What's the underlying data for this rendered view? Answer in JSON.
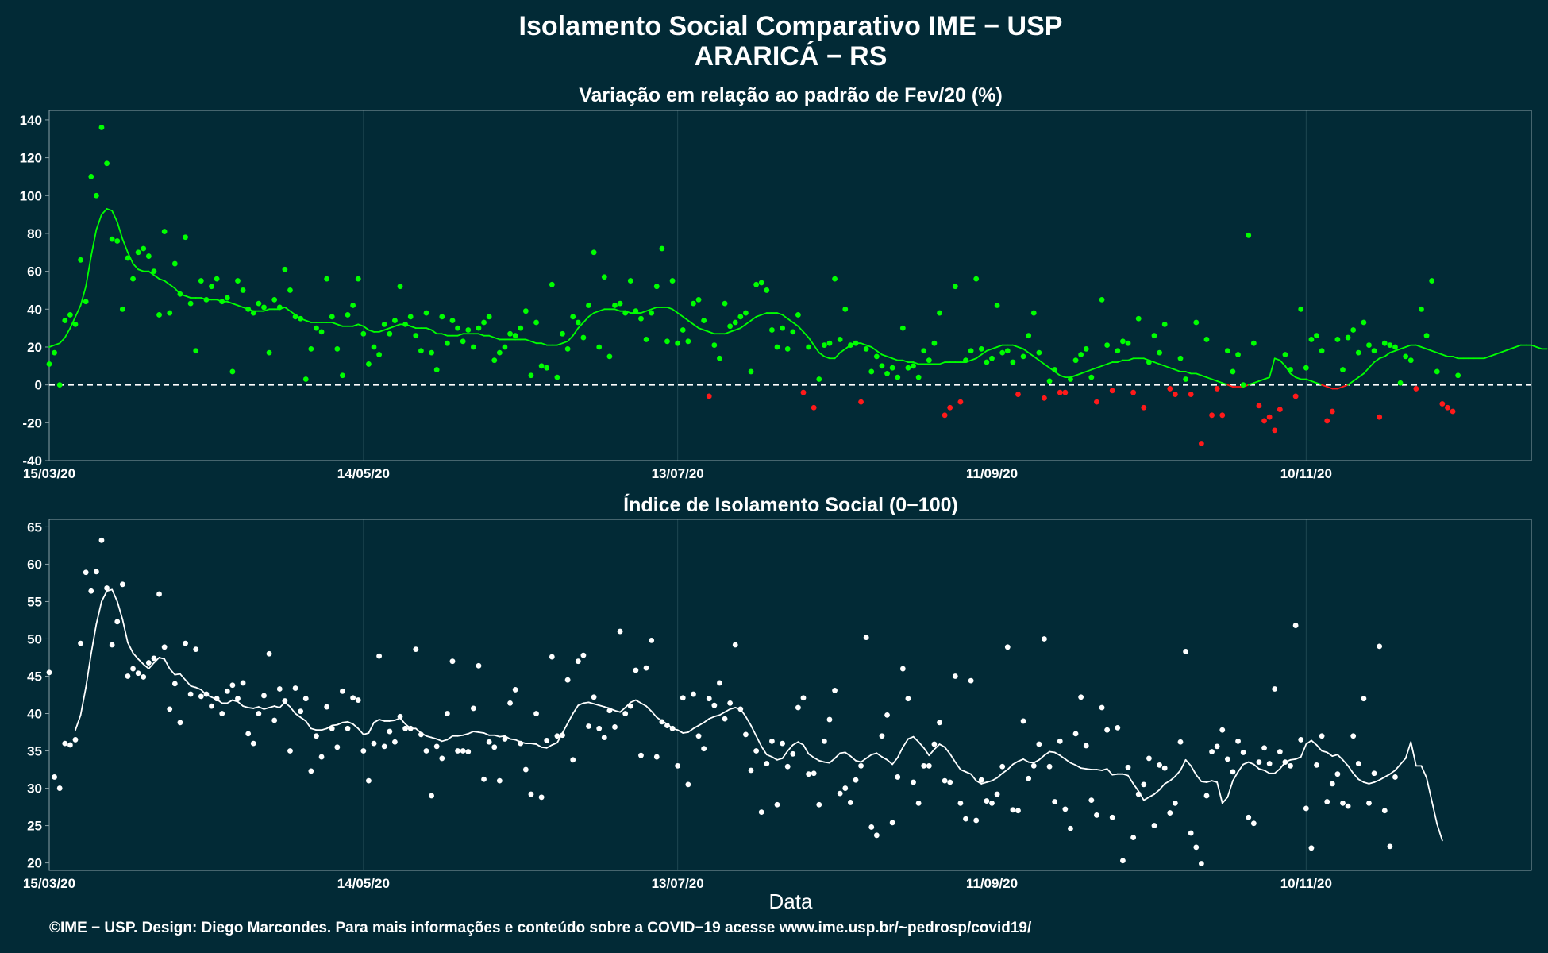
{
  "figure": {
    "title": "Isolamento Social Comparativo IME − USP",
    "subtitle": "ARARICÁ − RS",
    "xlabel": "Data",
    "footer": "©IME − USP. Design: Diego Marcondes. Para mais informações e conteúdo sobre a COVID−19 acesse www.ime.usp.br/~pedrosp/covid19/",
    "colors": {
      "background": "#022a36",
      "positive": "#00ff00",
      "negative": "#ff1a1a",
      "index": "#ffffff",
      "grid": "#1f4752",
      "frame": "#8aa0a6"
    }
  },
  "chart_data": [
    {
      "type": "scatter",
      "title": "Variação em relação ao padrão de Fev/20 (%)",
      "x_start": "15/03/20",
      "x_ticks": [
        "15/03/20",
        "14/05/20",
        "13/07/20",
        "11/09/20",
        "10/11/20"
      ],
      "x_range": [
        "15/03/20",
        "23/12/20"
      ],
      "ylim": [
        -40,
        145
      ],
      "yticks": [
        -40,
        -20,
        0,
        20,
        40,
        60,
        80,
        100,
        120,
        140
      ],
      "reference_line": 0,
      "series": [
        {
          "values": [
            11,
            17,
            0,
            34,
            37,
            32,
            66,
            44,
            110,
            100,
            136,
            117,
            77,
            76,
            40,
            67,
            56,
            70,
            72,
            68,
            60,
            37,
            81,
            38,
            64,
            48,
            78,
            43,
            18,
            55,
            45,
            52,
            56,
            44,
            46,
            7,
            55,
            50,
            40,
            38,
            43,
            41,
            17,
            45,
            41,
            61,
            50,
            36,
            35,
            3,
            19,
            30,
            28,
            56,
            36,
            19,
            5,
            37,
            42,
            56,
            27,
            11,
            20,
            16,
            32,
            27,
            34,
            52,
            32,
            36,
            26,
            18,
            38,
            17,
            8,
            36,
            22,
            34,
            30,
            23,
            29,
            20,
            30,
            33,
            36,
            13,
            17,
            20,
            27,
            26,
            30,
            39,
            5,
            33,
            10,
            9,
            53,
            4,
            27,
            19,
            36,
            33,
            25,
            42,
            70,
            20,
            57,
            15,
            42,
            43,
            38,
            55,
            39,
            35,
            24,
            38,
            52,
            72,
            23,
            55,
            22,
            29,
            23,
            43,
            45,
            34,
            -6,
            21,
            14,
            43,
            31,
            33,
            36,
            38,
            7,
            53,
            54,
            50,
            29,
            20,
            30,
            19,
            28,
            37,
            -4,
            20,
            -12,
            3,
            21,
            22,
            56,
            24,
            40,
            21,
            22,
            -9,
            19,
            7,
            15,
            10,
            6,
            9,
            4,
            30,
            9,
            10,
            4,
            18,
            13,
            22,
            38,
            -16,
            -12,
            52,
            -9,
            13,
            18,
            56,
            19,
            12,
            14,
            42,
            17,
            18,
            12,
            -5,
            15,
            26,
            38,
            17,
            -7,
            2,
            8,
            -4,
            -4,
            3,
            13,
            16,
            19,
            4,
            -9,
            45,
            21,
            -3,
            18,
            23,
            22,
            -4,
            35,
            -12,
            12,
            26,
            17,
            32,
            -2,
            -5,
            14,
            3,
            -5,
            33,
            -31,
            24,
            -16,
            -2,
            -16,
            18,
            7,
            16,
            0,
            79,
            22,
            -11,
            -19,
            -17,
            -24,
            -13,
            16,
            8,
            -6,
            40,
            9,
            24,
            26,
            18,
            -19,
            -14,
            24,
            8,
            25,
            29,
            17,
            33,
            21,
            18,
            -17,
            22,
            21,
            20,
            1,
            15,
            13,
            -2,
            40,
            26,
            55,
            7,
            -10,
            -12,
            -14,
            5
          ],
          "smoothed": [
            20,
            21,
            22,
            25,
            30,
            36,
            42,
            52,
            68,
            82,
            90,
            93,
            92,
            86,
            77,
            70,
            64,
            61,
            60,
            60,
            58,
            56,
            55,
            53,
            51,
            48,
            47,
            46,
            46,
            46,
            45,
            45,
            45,
            44,
            44,
            43,
            42,
            41,
            40,
            39,
            39,
            39,
            40,
            40,
            40,
            41,
            39,
            37,
            35,
            34,
            33,
            33,
            33,
            33,
            33,
            32,
            31,
            31,
            31,
            32,
            31,
            29,
            28,
            28,
            29,
            30,
            31,
            32,
            32,
            31,
            30,
            30,
            30,
            29,
            27,
            27,
            26,
            26,
            26,
            27,
            27,
            27,
            27,
            26,
            26,
            25,
            24,
            24,
            24,
            24,
            24,
            24,
            23,
            22,
            22,
            21,
            21,
            21,
            22,
            23,
            26,
            30,
            33,
            36,
            38,
            39,
            40,
            40,
            40,
            39,
            39,
            38,
            38,
            38,
            39,
            40,
            41,
            41,
            41,
            40,
            38,
            36,
            34,
            32,
            30,
            29,
            28,
            27,
            27,
            27,
            28,
            29,
            30,
            32,
            34,
            36,
            37,
            38,
            38,
            38,
            37,
            35,
            33,
            31,
            28,
            25,
            21,
            17,
            15,
            14,
            14,
            17,
            19,
            21,
            22,
            22,
            21,
            20,
            18,
            16,
            15,
            14,
            13,
            13,
            12,
            12,
            11,
            11,
            11,
            11,
            11,
            12,
            12,
            12,
            12,
            12,
            13,
            14,
            16,
            18,
            19,
            20,
            21,
            21,
            21,
            20,
            19,
            17,
            15,
            13,
            11,
            9,
            7,
            5,
            4,
            4,
            5,
            6,
            7,
            8,
            9,
            10,
            11,
            12,
            12,
            13,
            13,
            14,
            14,
            14,
            13,
            12,
            11,
            10,
            9,
            8,
            7,
            7,
            6,
            6,
            5,
            4,
            3,
            2,
            1,
            0,
            -1,
            -1,
            -1,
            0,
            1,
            2,
            3,
            4,
            14,
            13,
            10,
            6,
            4,
            3,
            3,
            2,
            1,
            0,
            -1,
            -2,
            -2,
            -1,
            0,
            2,
            4,
            6,
            9,
            12,
            14,
            15,
            17,
            18,
            19,
            20,
            21,
            21,
            20,
            19,
            18,
            17,
            16,
            15,
            15,
            14,
            14,
            14,
            14,
            14,
            14,
            15,
            16,
            17,
            18,
            19,
            20,
            21,
            21,
            21,
            20,
            19,
            19
          ]
        }
      ]
    },
    {
      "type": "scatter",
      "title": "Índice de Isolamento Social (0−100)",
      "x_start": "15/03/20",
      "x_ticks": [
        "15/03/20",
        "14/05/20",
        "13/07/20",
        "11/09/20",
        "10/11/20"
      ],
      "x_range": [
        "15/03/20",
        "23/12/20"
      ],
      "ylim": [
        19,
        66
      ],
      "yticks": [
        20,
        25,
        30,
        35,
        40,
        45,
        50,
        55,
        60,
        65
      ],
      "series": [
        {
          "values": [
            45.5,
            31.5,
            30,
            36,
            35.8,
            36.5,
            49.4,
            58.9,
            56.4,
            59,
            63.2,
            56.8,
            49.2,
            52.3,
            57.3,
            45,
            46,
            45.4,
            44.9,
            46.8,
            47.4,
            56,
            48.9,
            40.6,
            44,
            38.8,
            49.4,
            42.6,
            48.6,
            42.3,
            42.6,
            41,
            42,
            40,
            43,
            43.8,
            42,
            44.1,
            37.3,
            36,
            40,
            42.4,
            48,
            39.1,
            43.3,
            41.7,
            35,
            43.4,
            40.3,
            42,
            32.3,
            37,
            34.2,
            40.9,
            38,
            35.5,
            43,
            38,
            42.1,
            41.8,
            35,
            31,
            36,
            47.7,
            35.6,
            37.6,
            36.2,
            39.6,
            38,
            38,
            48.6,
            37.2,
            35,
            29,
            35.6,
            34,
            40,
            47,
            35,
            35,
            34.9,
            40.7,
            46.4,
            31.2,
            36.2,
            35.5,
            31,
            36.6,
            41.4,
            43.2,
            36,
            32.5,
            29.2,
            40,
            28.8,
            36.4,
            47.6,
            37,
            37.1,
            44.5,
            33.8,
            47,
            47.8,
            38.3,
            42.2,
            38,
            36.8,
            40.4,
            38.2,
            51,
            40,
            41,
            45.8,
            34.4,
            46.1,
            49.8,
            34.2,
            38.9,
            38.4,
            38,
            33,
            42.1,
            30.5,
            42.6,
            37,
            35.3,
            42,
            41.1,
            44.1,
            39.3,
            41.4,
            49.2,
            40.6,
            37.2,
            32.4,
            35,
            26.8,
            33.3,
            36.3,
            27.8,
            36,
            32.9,
            34.6,
            40.8,
            42.1,
            31.9,
            32,
            27.8,
            36.3,
            39.2,
            43.1,
            29.3,
            30,
            28.1,
            31.1,
            33,
            50.2,
            24.8,
            23.7,
            37,
            39.8,
            25.4,
            31.5,
            46,
            42,
            30.8,
            28,
            33,
            33,
            35.9,
            38.8,
            31,
            30.8,
            45,
            28,
            25.9,
            44.4,
            25.7,
            31.1,
            28.3,
            28,
            29.2,
            32.9,
            48.9,
            27.1,
            27,
            39,
            31.3,
            33,
            35.9,
            50,
            32.9,
            28.2,
            36.3,
            27.2,
            24.6,
            37.3,
            42.2,
            35.7,
            28.4,
            26.4,
            40.8,
            37.8,
            26.1,
            38.1,
            20.3,
            32.8,
            23.4,
            29.2,
            30.5,
            34,
            25,
            33.1,
            32.7,
            26.7,
            28,
            36.2,
            48.3,
            24,
            22.1,
            19.9,
            29,
            34.9,
            35.6,
            37.8,
            33.9,
            32.2,
            36.3,
            34.8,
            26.1,
            25.3,
            33.5,
            35.4,
            33.3,
            43.3,
            34.9,
            33.5,
            33,
            51.8,
            36.5,
            27.3,
            22,
            33.1,
            37,
            28.2,
            30.6,
            31.9,
            28,
            27.6,
            37,
            33.3,
            42,
            28,
            32,
            49,
            27,
            22.2,
            31.5
          ],
          "smoothed": [
            null,
            null,
            null,
            null,
            null,
            37.8,
            39.8,
            43.5,
            48,
            52,
            55,
            56.4,
            56.6,
            55,
            52.6,
            49.5,
            48.1,
            47.3,
            46.6,
            46,
            46.8,
            47.5,
            47.3,
            46,
            45.2,
            45.3,
            44.5,
            43.7,
            43.5,
            43.2,
            42.5,
            42.2,
            41.9,
            41.4,
            41.4,
            41.8,
            41.6,
            41,
            40.8,
            40.7,
            40.9,
            40.6,
            40.8,
            41,
            40.8,
            41.5,
            40.9,
            40,
            39.5,
            39,
            38,
            37.8,
            37.8,
            38,
            38.4,
            38.5,
            38.8,
            38.9,
            38.6,
            38,
            37.2,
            37.4,
            38.8,
            39.2,
            39,
            39,
            39.1,
            39.4,
            38.6,
            38,
            38,
            37.4,
            37,
            36.8,
            36.6,
            36.3,
            36.5,
            37,
            37,
            37.1,
            37.3,
            37.6,
            37.5,
            37.4,
            37.1,
            37.1,
            36.9,
            37,
            36.6,
            36.5,
            36.2,
            36,
            36,
            35.9,
            35.5,
            35.4,
            35.8,
            36.1,
            37.4,
            38.7,
            40,
            41.1,
            41.4,
            41.5,
            41.3,
            41.1,
            40.9,
            40.7,
            40.4,
            40.2,
            40.8,
            41.5,
            41.8,
            41.4,
            41,
            40.3,
            39.5,
            39,
            38.6,
            38,
            37.8,
            37.4,
            37.5,
            38,
            38.4,
            38.8,
            39.3,
            39.6,
            39.8,
            40.2,
            40.6,
            40.8,
            40.6,
            39.6,
            38.4,
            37,
            35.6,
            34.5,
            34.2,
            33.8,
            34,
            35,
            35.8,
            36.2,
            35.8,
            34.6,
            34.1,
            33.7,
            33.5,
            33.4,
            34,
            34.7,
            34.8,
            34.3,
            33.7,
            33.5,
            34,
            34.5,
            34.7,
            34.2,
            33.8,
            33.2,
            34.1,
            35.5,
            36.6,
            36.9,
            36.2,
            35.4,
            34.4,
            35.2,
            35.9,
            35.5,
            34.6,
            33.5,
            32.5,
            32.2,
            31.9,
            31,
            30.6,
            30.8,
            31,
            31.4,
            32,
            32.5,
            33.2,
            33.6,
            33.9,
            33.5,
            33.4,
            33.8,
            34.4,
            34.9,
            34.8,
            34.4,
            33.9,
            33.4,
            33.1,
            32.7,
            32.6,
            32.5,
            32.5,
            32.4,
            32.6,
            31.8,
            31.9,
            31.9,
            31.7,
            30.6,
            29.6,
            28.4,
            28.8,
            29.2,
            29.8,
            30.6,
            31,
            31.6,
            32.4,
            33.8,
            33,
            31.8,
            30.9,
            30.8,
            31,
            30.8,
            28,
            28.8,
            31,
            32.2,
            33.2,
            33.5,
            33.2,
            32.6,
            32.4,
            32,
            32,
            32.6,
            33.5,
            33.8,
            33.9,
            34.2,
            35.9,
            36.4,
            35.8,
            35,
            34.8,
            34.3,
            34.5,
            33.8,
            33,
            32,
            31.2,
            30.8,
            30.6,
            30.8,
            31.1,
            31.5,
            31.9,
            32.4,
            33.2,
            34,
            36.2,
            33,
            33,
            31.4,
            28.3,
            25.2,
            23
          ]
        }
      ]
    }
  ]
}
